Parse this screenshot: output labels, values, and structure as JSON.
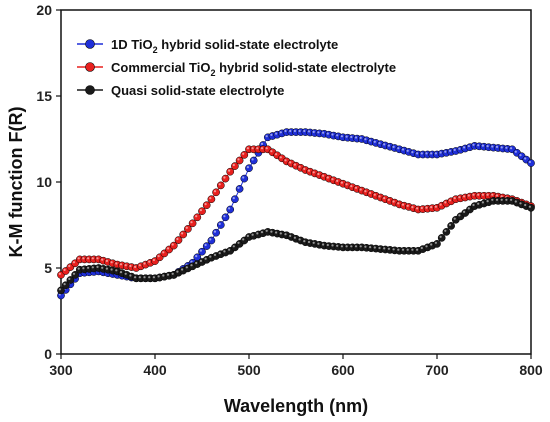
{
  "chart_data": {
    "type": "scatter",
    "xlabel": "Wavelength (nm)",
    "ylabel": "K-M function F(R)",
    "xlim": [
      300,
      800
    ],
    "ylim": [
      0,
      20
    ],
    "xticks": [
      300,
      400,
      500,
      600,
      700,
      800
    ],
    "yticks": [
      0,
      5,
      10,
      15,
      20
    ],
    "legend_position": "top-left",
    "series": [
      {
        "name": "1D TiO2 hybrid solid-state electrolyte",
        "color": "#1f2fd8",
        "x": [
          300,
          320,
          340,
          360,
          380,
          400,
          420,
          440,
          460,
          480,
          500,
          520,
          540,
          560,
          580,
          600,
          620,
          640,
          660,
          680,
          700,
          720,
          740,
          760,
          780,
          800
        ],
        "y": [
          3.4,
          4.7,
          4.8,
          4.6,
          4.4,
          4.4,
          4.6,
          5.3,
          6.6,
          8.4,
          10.8,
          12.6,
          12.9,
          12.9,
          12.8,
          12.6,
          12.5,
          12.2,
          11.9,
          11.6,
          11.6,
          11.8,
          12.1,
          12.0,
          11.9,
          11.1
        ]
      },
      {
        "name": "Commercial TiO2 hybrid solid-state electrolyte",
        "color": "#e8201e",
        "x": [
          300,
          320,
          340,
          360,
          380,
          400,
          420,
          440,
          460,
          480,
          500,
          520,
          540,
          560,
          580,
          600,
          620,
          640,
          660,
          680,
          700,
          720,
          740,
          760,
          780,
          800
        ],
        "y": [
          4.6,
          5.5,
          5.5,
          5.2,
          5.0,
          5.4,
          6.3,
          7.6,
          9.0,
          10.6,
          11.9,
          11.9,
          11.2,
          10.7,
          10.3,
          9.9,
          9.5,
          9.1,
          8.7,
          8.4,
          8.5,
          9.0,
          9.2,
          9.2,
          9.0,
          8.6
        ]
      },
      {
        "name": "Quasi solid-state electrolyte",
        "color": "#1a1a1a",
        "x": [
          300,
          320,
          340,
          360,
          380,
          400,
          420,
          440,
          460,
          480,
          500,
          520,
          540,
          560,
          580,
          600,
          620,
          640,
          660,
          680,
          700,
          720,
          740,
          760,
          780,
          800
        ],
        "y": [
          3.7,
          4.9,
          5.0,
          4.8,
          4.4,
          4.4,
          4.6,
          5.1,
          5.6,
          6.0,
          6.8,
          7.1,
          6.9,
          6.5,
          6.3,
          6.2,
          6.2,
          6.1,
          6.0,
          6.0,
          6.4,
          7.8,
          8.6,
          8.9,
          8.9,
          8.5
        ]
      }
    ]
  },
  "legend": [
    {
      "prefix": "1D TiO",
      "sub": "2",
      "suffix": " hybrid solid-state electrolyte",
      "color": "#1f2fd8"
    },
    {
      "prefix": "Commercial TiO",
      "sub": "2",
      "suffix": " hybrid solid-state electrolyte",
      "color": "#e8201e"
    },
    {
      "prefix": "Quasi solid-state electrolyte",
      "sub": "",
      "suffix": "",
      "color": "#1a1a1a"
    }
  ]
}
